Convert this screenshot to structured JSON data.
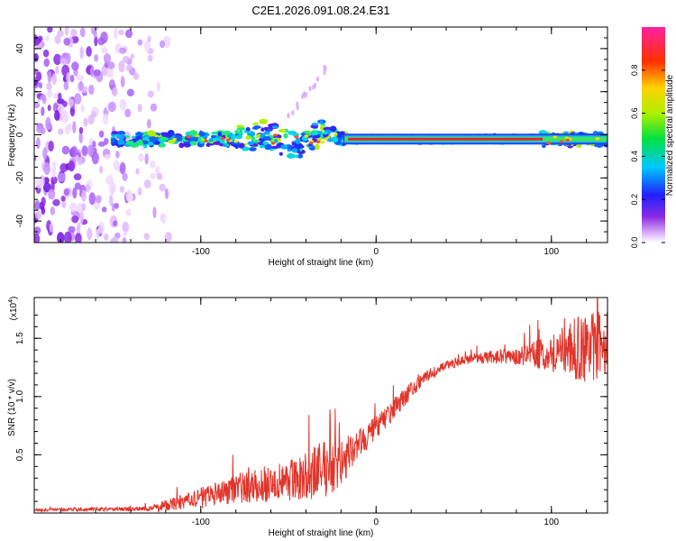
{
  "title": "C2E1.2026.091.08.24.E31",
  "chart_data": [
    {
      "type": "heatmap",
      "xlabel": "Height of straight line (km)",
      "ylabel": "Frequency (Hz)",
      "xlim": [
        -195,
        132
      ],
      "ylim": [
        -50,
        50
      ],
      "xticks": [
        -100,
        0,
        100
      ],
      "xtick_labels": [
        "-100",
        "0",
        "100"
      ],
      "yticks": [
        -40,
        -20,
        0,
        20,
        40
      ],
      "ytick_labels": [
        "-40",
        "-20",
        "0",
        "20",
        "40"
      ],
      "colorbar": {
        "label": "Normalized spectral amplitude",
        "range": [
          0,
          1
        ],
        "ticks": [
          0.0,
          0.2,
          0.4,
          0.6,
          0.8
        ],
        "tick_labels": [
          "0.0",
          "0.2",
          "0.4",
          "0.6",
          "0.8"
        ]
      },
      "features": {
        "noise_region_x": [
          -195,
          -118
        ],
        "carrier_band_x": [
          -150,
          132
        ],
        "carrier_frequency_hz": -2,
        "strong_line_x": [
          -18,
          95
        ],
        "strong_line_frequency_hz": -2
      }
    },
    {
      "type": "line",
      "xlabel": "Height of straight line (km)",
      "ylabel": "SNR (10 * v/v)",
      "y_multiplier": "(x10",
      "y_multiplier_exp": "4",
      "xlim": [
        -195,
        132
      ],
      "ylim": [
        0,
        1.85
      ],
      "xticks": [
        -100,
        0,
        100
      ],
      "xtick_labels": [
        "-100",
        "0",
        "100"
      ],
      "yticks": [
        0.5,
        1.0,
        1.5
      ],
      "ytick_labels": [
        "0.5",
        "1.0",
        "1.5"
      ],
      "color": "#e0342a",
      "series": [
        {
          "name": "SNR",
          "x": [
            -195,
            -130,
            -120,
            -100,
            -80,
            -60,
            -40,
            -30,
            -20,
            -12,
            -5,
            0,
            10,
            20,
            30,
            40,
            50,
            60,
            80,
            100,
            115,
            132
          ],
          "base": [
            0.025,
            0.035,
            0.06,
            0.12,
            0.2,
            0.24,
            0.3,
            0.35,
            0.4,
            0.55,
            0.65,
            0.72,
            0.88,
            1.05,
            1.18,
            1.26,
            1.31,
            1.33,
            1.34,
            1.36,
            1.38,
            1.4
          ],
          "amp": [
            0.01,
            0.02,
            0.05,
            0.09,
            0.13,
            0.16,
            0.2,
            0.26,
            0.2,
            0.14,
            0.12,
            0.1,
            0.09,
            0.07,
            0.05,
            0.04,
            0.04,
            0.05,
            0.07,
            0.16,
            0.28,
            0.32
          ]
        }
      ]
    }
  ]
}
